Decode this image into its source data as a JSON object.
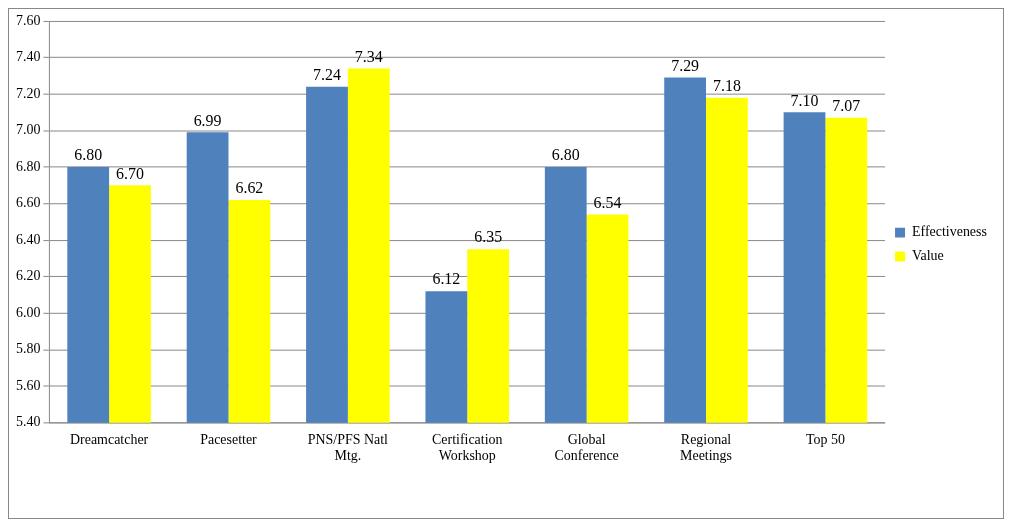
{
  "chart_data": {
    "type": "bar",
    "categories": [
      "Dreamcatcher",
      "Pacesetter",
      "PNS/PFS Natl Mtg.",
      "Certification Workshop",
      "Global Conference",
      "Regional Meetings",
      "Top 50"
    ],
    "series": [
      {
        "name": "Effectiveness",
        "color": "#4f81bd",
        "values": [
          6.8,
          6.99,
          7.24,
          6.12,
          6.8,
          7.29,
          7.1
        ],
        "value_labels": [
          "6.80",
          "6.99",
          "7.24",
          "6.12",
          "6.80",
          "7.29",
          "7.10"
        ]
      },
      {
        "name": "Value",
        "color": "#ffff00",
        "values": [
          6.7,
          6.62,
          7.34,
          6.35,
          6.54,
          7.18,
          7.07
        ],
        "value_labels": [
          "6.70",
          "6.62",
          "7.34",
          "6.35",
          "6.54",
          "7.18",
          "7.07"
        ]
      }
    ],
    "ylim": [
      5.4,
      7.6
    ],
    "yticks": [
      {
        "value": 5.4,
        "label": "5.40"
      },
      {
        "value": 5.6,
        "label": "5.60"
      },
      {
        "value": 5.8,
        "label": "5.80"
      },
      {
        "value": 6.0,
        "label": "6.00"
      },
      {
        "value": 6.2,
        "label": "6.20"
      },
      {
        "value": 6.4,
        "label": "6.40"
      },
      {
        "value": 6.6,
        "label": "6.60"
      },
      {
        "value": 6.8,
        "label": "6.80"
      },
      {
        "value": 7.0,
        "label": "7.00"
      },
      {
        "value": 7.2,
        "label": "7.20"
      },
      {
        "value": 7.4,
        "label": "7.40"
      },
      {
        "value": 7.6,
        "label": "7.60"
      }
    ],
    "grid": "y",
    "legend": "right"
  }
}
